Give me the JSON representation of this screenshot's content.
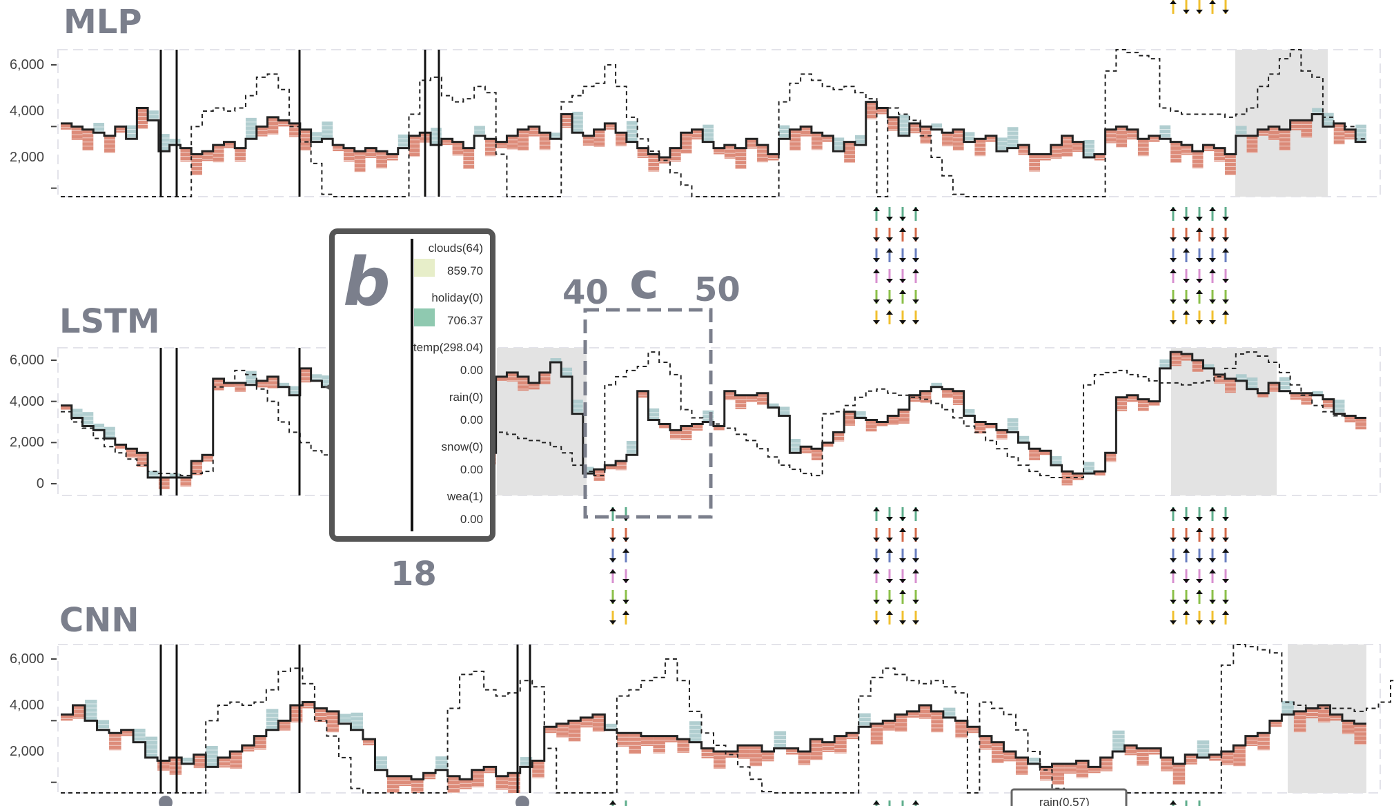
{
  "panels": [
    {
      "title": "MLP",
      "y_ticks": [
        "6,000",
        "4,000",
        "2,000"
      ]
    },
    {
      "title": "LSTM",
      "y_ticks": [
        "6,000",
        "4,000",
        "2,000",
        "0"
      ]
    },
    {
      "title": "CNN",
      "y_ticks": [
        "6,000",
        "4,000",
        "2,000"
      ]
    }
  ],
  "annotations": {
    "b_label": "b",
    "c_label": "c",
    "c_start": "40",
    "c_end": "50",
    "b_index": "18"
  },
  "tooltip": {
    "rows": [
      {
        "feature": "clouds(64)",
        "value": "859.70",
        "swatch": "#e7eec9"
      },
      {
        "feature": "holiday(0)",
        "value": "706.37",
        "swatch": "#8fc9b0"
      },
      {
        "feature": "temp(298.04)",
        "value": "0.00",
        "swatch": ""
      },
      {
        "feature": "rain(0)",
        "value": "0.00",
        "swatch": ""
      },
      {
        "feature": "snow(0)",
        "value": "0.00",
        "swatch": ""
      },
      {
        "feature": "wea(1)",
        "value": "0.00",
        "swatch": ""
      }
    ]
  },
  "bottom_tooltip": "rain(0.57)",
  "colors": {
    "positive": "#d9806c",
    "negative": "#a8c9cb",
    "highlight": "#e3e3e3",
    "axis": "#444444",
    "title": "#7b7f8c"
  },
  "chart_data": [
    {
      "type": "line",
      "title": "MLP",
      "ylim": [
        0,
        6500
      ],
      "yticks": [
        6000,
        4000,
        2000
      ],
      "grid": false,
      "series": [
        {
          "values": [
            4100,
            4000,
            3900,
            3800,
            3700,
            4000,
            3600,
            4600,
            4200,
            3200,
            3400,
            3300,
            3100,
            3200,
            3400,
            3500,
            3300,
            3600,
            4000,
            4300,
            4200,
            4100,
            3900,
            3500,
            3600,
            3400,
            3300,
            3200,
            3300,
            3200,
            3100,
            3300,
            3700,
            3800,
            3400,
            3600,
            3500,
            3300,
            3700,
            3600,
            3500,
            3700,
            3900,
            4000,
            3800,
            3600,
            4400,
            3800,
            3700,
            3900,
            4100,
            3800,
            3500,
            3300,
            3100,
            3000,
            3300,
            3800,
            3900,
            3500,
            3300,
            3400,
            3300,
            3600,
            3400,
            3100,
            3600,
            3900,
            4000,
            3800,
            3700,
            3200,
            3500,
            3400,
            4800,
            4600,
            4300,
            3700,
            4100,
            4000,
            3900,
            3800,
            3900,
            3500,
            3600,
            3700,
            3200,
            3300,
            3400,
            3100,
            3100,
            3400,
            3700,
            3500,
            3000,
            3100,
            3900,
            4000,
            3900,
            3600,
            3700,
            3600,
            3500,
            3400,
            3200,
            3400,
            3300,
            3100,
            3700,
            3700,
            3900,
            4000,
            3900,
            4200,
            4200,
            4400,
            4000,
            4100,
            3900,
            3500
          ]
        },
        {
          "values": [
            800,
            700,
            400,
            200,
            100,
            100,
            100,
            100,
            100,
            100,
            100,
            200,
            4000,
            4500,
            4600,
            4500,
            4600,
            5000,
            5600,
            5700,
            5200,
            4000,
            3500,
            2800,
            1800,
            1000,
            600,
            300,
            200,
            200,
            100,
            100,
            4400,
            5500,
            5600,
            5000,
            4800,
            4900,
            5300,
            5100,
            3100,
            800,
            500,
            300,
            200,
            100,
            4800,
            5000,
            5300,
            5400,
            6000,
            5300,
            4300,
            3600,
            3200,
            2900,
            2500,
            2100,
            1700,
            1400,
            1100,
            700,
            400,
            200,
            100,
            200,
            4800,
            5400,
            5700,
            5500,
            5300,
            5200,
            5300,
            5100,
            4900,
            100,
            4600,
            4400,
            4200,
            3700,
            3000,
            2400,
            1800,
            1300,
            900,
            600,
            300,
            200,
            200,
            100,
            100,
            100,
            100,
            100,
            100,
            100,
            5800,
            6500,
            6400,
            6300,
            6200,
            4600,
            4500,
            4400,
            4400,
            4400,
            4400,
            4300,
            4400,
            4600,
            5300,
            5700,
            6200,
            6500,
            5800,
            5600,
            4300,
            4100,
            4000,
            3600
          ]
        }
      ]
    },
    {
      "type": "line",
      "title": "LSTM",
      "ylim": [
        0,
        6500
      ],
      "yticks": [
        6000,
        4000,
        2000,
        0
      ],
      "grid": false,
      "series": [
        {
          "values": [
            3800,
            3200,
            2800,
            2600,
            2200,
            1900,
            1700,
            1500,
            300,
            300,
            300,
            300,
            1100,
            1400,
            5100,
            4900,
            4900,
            4800,
            5000,
            5200,
            4700,
            4300,
            5600,
            5000,
            4700,
            4000,
            3100,
            3000,
            2700,
            2600,
            2400,
            2200,
            2100,
            2000,
            1900,
            1800,
            1800,
            1700,
            1600,
            1500,
            5200,
            5400,
            5200,
            4900,
            5400,
            5900,
            5200,
            3400,
            500,
            700,
            900,
            1100,
            1400,
            4500,
            3100,
            2900,
            2600,
            2800,
            2900,
            3000,
            2800,
            4500,
            4300,
            4300,
            4400,
            3700,
            3300,
            1500,
            1800,
            1700,
            2000,
            2500,
            3500,
            3200,
            3100,
            3000,
            3300,
            3600,
            4300,
            4500,
            4700,
            4600,
            4500,
            3300,
            3000,
            2900,
            2600,
            2500,
            2000,
            1700,
            1600,
            900,
            600,
            500,
            500,
            600,
            1500,
            4200,
            4300,
            4100,
            4000,
            5600,
            6400,
            6300,
            6000,
            5600,
            5300,
            5100,
            5000,
            4600,
            4400,
            4900,
            4500,
            4400,
            4400,
            4300,
            4100,
            3400,
            3300,
            3200
          ]
        },
        {
          "values": [
            3500,
            3000,
            2700,
            2200,
            1800,
            1500,
            1200,
            900,
            600,
            500,
            500,
            400,
            500,
            600,
            4700,
            4900,
            5500,
            5300,
            4600,
            4000,
            3000,
            2500,
            2000,
            1600,
            1400,
            1200,
            1000,
            900,
            800,
            700,
            900,
            1600,
            3200,
            4000,
            3800,
            3500,
            3300,
            3100,
            2900,
            2700,
            2500,
            2400,
            2200,
            2100,
            2000,
            1800,
            1500,
            900,
            600,
            400,
            4800,
            5200,
            5500,
            5700,
            6400,
            5900,
            5300,
            3600,
            3200,
            3000,
            2900,
            2700,
            2400,
            2100,
            1700,
            1300,
            900,
            700,
            500,
            400,
            3400,
            3500,
            3800,
            4200,
            4500,
            4600,
            4400,
            4300,
            4200,
            4100,
            3900,
            3600,
            3200,
            2800,
            2500,
            2100,
            1700,
            1300,
            900,
            600,
            400,
            300,
            300,
            300,
            4800,
            5300,
            5400,
            5500,
            5300,
            5200,
            5000,
            4900,
            4900,
            4800,
            4900,
            5000,
            5200,
            5600,
            6300,
            6400,
            6200,
            5900,
            5400,
            4800,
            4300,
            3800,
            3500,
            3300
          ]
        }
      ]
    },
    {
      "type": "line",
      "title": "CNN",
      "ylim": [
        0,
        6500
      ],
      "yticks": [
        6000,
        4000,
        2000
      ],
      "grid": false,
      "series": [
        {
          "values": [
            4200,
            4500,
            4000,
            3700,
            3600,
            3700,
            3300,
            2800,
            2700,
            2800,
            2600,
            2900,
            2500,
            2800,
            3000,
            3200,
            3500,
            3700,
            4000,
            4500,
            4600,
            4400,
            4300,
            3900,
            3700,
            3400,
            2400,
            2200,
            2200,
            2100,
            2300,
            2400,
            2200,
            2100,
            2400,
            2500,
            2200,
            2300,
            2500,
            2700,
            3800,
            3900,
            4000,
            4100,
            4200,
            3700,
            3600,
            3600,
            3500,
            3500,
            3500,
            3400,
            3300,
            3100,
            3000,
            3000,
            3200,
            3200,
            3000,
            3100,
            3100,
            3000,
            3400,
            3300,
            3500,
            3600,
            3800,
            3900,
            4000,
            4200,
            4300,
            4500,
            4300,
            4100,
            4000,
            3800,
            3500,
            3300,
            3000,
            2800,
            2600,
            2500,
            2600,
            2600,
            2700,
            2500,
            2800,
            3000,
            3200,
            3100,
            3100,
            2800,
            2600,
            2900,
            2800,
            2900,
            3000,
            3200,
            3500,
            3600,
            4000,
            4200,
            4300,
            4400,
            4500,
            4200,
            4000,
            3900
          ]
        },
        {
          "values": [
            800,
            700,
            500,
            400,
            300,
            200,
            200,
            100,
            100,
            100,
            100,
            200,
            4000,
            4500,
            4600,
            4500,
            4600,
            5000,
            5600,
            5700,
            5200,
            4000,
            3500,
            2800,
            1800,
            1000,
            600,
            300,
            200,
            200,
            100,
            100,
            4400,
            5500,
            5600,
            5000,
            4800,
            4900,
            5300,
            5100,
            3100,
            800,
            500,
            300,
            200,
            100,
            4800,
            5000,
            5300,
            5400,
            6000,
            5300,
            4300,
            3600,
            3200,
            2900,
            2500,
            2100,
            1700,
            1400,
            1100,
            700,
            400,
            200,
            100,
            200,
            4800,
            5400,
            5700,
            5500,
            5300,
            5200,
            5300,
            5100,
            4900,
            100,
            4600,
            4400,
            4200,
            3700,
            3000,
            2400,
            1800,
            1300,
            900,
            600,
            300,
            200,
            200,
            100,
            100,
            100,
            100,
            100,
            100,
            100,
            5800,
            6500,
            6400,
            6300,
            6200,
            4600,
            4500,
            4400,
            4400,
            4400,
            4400,
            4300,
            4400,
            4600,
            5300,
            5700,
            6200,
            6500
          ]
        }
      ]
    }
  ]
}
